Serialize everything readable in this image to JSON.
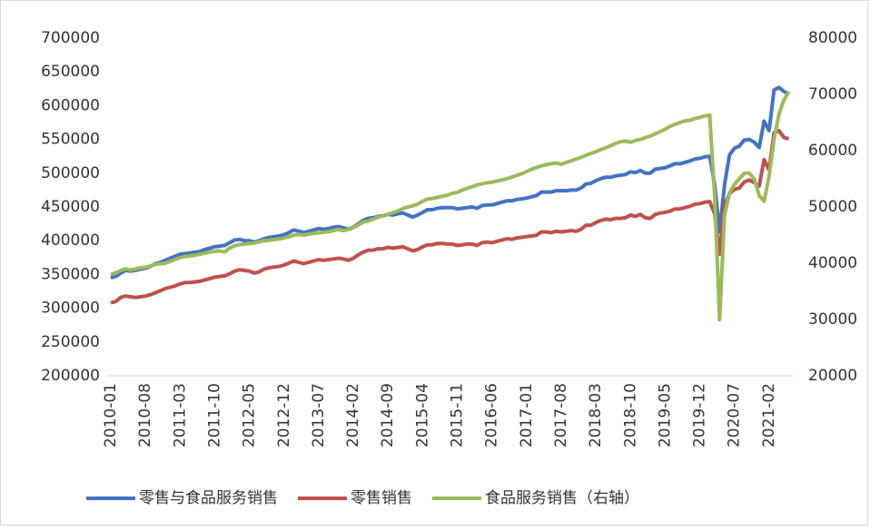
{
  "chart_data": {
    "type": "line",
    "categories": [
      "2010-01",
      null,
      null,
      null,
      null,
      null,
      null,
      "2010-08",
      null,
      null,
      null,
      null,
      null,
      null,
      "2011-03",
      null,
      null,
      null,
      null,
      null,
      null,
      "2011-10",
      null,
      null,
      null,
      null,
      null,
      null,
      "2012-05",
      null,
      null,
      null,
      null,
      null,
      null,
      "2012-12",
      null,
      null,
      null,
      null,
      null,
      null,
      "2013-07",
      null,
      null,
      null,
      null,
      null,
      null,
      "2014-02",
      null,
      null,
      null,
      null,
      null,
      null,
      "2014-09",
      null,
      null,
      null,
      null,
      null,
      null,
      "2015-04",
      null,
      null,
      null,
      null,
      null,
      null,
      "2015-11",
      null,
      null,
      null,
      null,
      null,
      null,
      "2016-06",
      null,
      null,
      null,
      null,
      null,
      null,
      "2017-01",
      null,
      null,
      null,
      null,
      null,
      null,
      "2017-08",
      null,
      null,
      null,
      null,
      null,
      null,
      "2018-03",
      null,
      null,
      null,
      null,
      null,
      null,
      "2018-10",
      null,
      null,
      null,
      null,
      null,
      null,
      "2019-05",
      null,
      null,
      null,
      null,
      null,
      null,
      "2019-12",
      null,
      null,
      null,
      null,
      null,
      null,
      "2020-07",
      null,
      null,
      null,
      null,
      null,
      null,
      "2021-02",
      null,
      null,
      null,
      null
    ],
    "series": [
      {
        "name": "零售与食品服务销售",
        "color": "#4472c4",
        "values": [
          345000,
          347000,
          352000,
          356000,
          355000,
          356000,
          358000,
          359000,
          362000,
          366000,
          368000,
          371000,
          374000,
          377000,
          380000,
          381000,
          382000,
          383000,
          384000,
          387000,
          389000,
          391000,
          392000,
          393000,
          397000,
          401000,
          402000,
          400000,
          400000,
          398000,
          400000,
          403000,
          405000,
          406000,
          407000,
          409000,
          412000,
          416000,
          414000,
          412000,
          414000,
          416000,
          418000,
          417000,
          418000,
          420000,
          421000,
          419000,
          417000,
          420000,
          425000,
          430000,
          433000,
          434000,
          436000,
          437000,
          439000,
          438000,
          440000,
          441000,
          438000,
          435000,
          438000,
          442000,
          446000,
          446000,
          448000,
          449000,
          449000,
          449000,
          447000,
          448000,
          449000,
          450000,
          448000,
          452000,
          453000,
          453000,
          455000,
          457000,
          459000,
          459000,
          461000,
          462000,
          463000,
          465000,
          467000,
          472000,
          472000,
          472000,
          474000,
          474000,
          474000,
          475000,
          475000,
          478000,
          484000,
          485000,
          489000,
          492000,
          494000,
          494000,
          496000,
          497000,
          498000,
          502000,
          501000,
          504000,
          500000,
          500000,
          506000,
          507000,
          508000,
          511000,
          514000,
          514000,
          516000,
          518000,
          521000,
          522000,
          524000,
          525000,
          484000,
          413000,
          483000,
          527000,
          537000,
          540000,
          549000,
          550000,
          546000,
          538000,
          577000,
          563000,
          623000,
          627000,
          621000,
          617000
        ]
      },
      {
        "name": "零售销售",
        "color": "#c0504d",
        "values": [
          308000,
          310000,
          316000,
          318000,
          317000,
          316000,
          317000,
          318000,
          320000,
          323000,
          326000,
          329000,
          331000,
          333000,
          336000,
          338000,
          338000,
          339000,
          340000,
          342000,
          344000,
          346000,
          347000,
          348000,
          351000,
          355000,
          357000,
          356000,
          355000,
          352000,
          354000,
          358000,
          360000,
          361000,
          362000,
          364000,
          367000,
          370000,
          368000,
          366000,
          368000,
          370000,
          372000,
          371000,
          372000,
          373000,
          374000,
          373000,
          371000,
          374000,
          379000,
          383000,
          386000,
          386000,
          388000,
          388000,
          390000,
          389000,
          390000,
          391000,
          388000,
          385000,
          387000,
          391000,
          394000,
          394000,
          396000,
          396000,
          395000,
          395000,
          393000,
          394000,
          395000,
          395000,
          393000,
          397000,
          398000,
          397000,
          399000,
          401000,
          403000,
          402000,
          404000,
          405000,
          406000,
          407000,
          408000,
          413000,
          413000,
          412000,
          414000,
          413000,
          414000,
          415000,
          414000,
          417000,
          423000,
          423000,
          427000,
          430000,
          432000,
          431000,
          433000,
          433000,
          434000,
          438000,
          436000,
          439000,
          434000,
          433000,
          439000,
          441000,
          442000,
          444000,
          447000,
          447000,
          449000,
          451000,
          454000,
          455000,
          457000,
          458000,
          440000,
          380000,
          452000,
          470000,
          476000,
          478000,
          487000,
          490000,
          486000,
          481000,
          520000,
          505000,
          560000,
          563000,
          553000,
          551000
        ]
      },
      {
        "name": "食品服务销售（右轴）",
        "color": "#9bbb59",
        "axis": "y2",
        "values": [
          38000,
          38300,
          38700,
          39000,
          38800,
          39000,
          39200,
          39300,
          39500,
          39800,
          39900,
          40000,
          40300,
          40700,
          41000,
          41200,
          41300,
          41400,
          41600,
          41800,
          42000,
          42100,
          42200,
          42000,
          42700,
          43100,
          43300,
          43400,
          43500,
          43600,
          43800,
          44000,
          44100,
          44200,
          44300,
          44500,
          44700,
          45000,
          45100,
          45000,
          45200,
          45300,
          45400,
          45500,
          45600,
          45800,
          46000,
          45800,
          46000,
          46300,
          46800,
          47300,
          47500,
          47800,
          48200,
          48400,
          48700,
          49000,
          49300,
          49700,
          50000,
          50200,
          50500,
          51000,
          51400,
          51500,
          51700,
          51900,
          52100,
          52400,
          52600,
          53000,
          53300,
          53600,
          53900,
          54100,
          54300,
          54400,
          54600,
          54800,
          55000,
          55300,
          55600,
          55900,
          56300,
          56700,
          57000,
          57300,
          57500,
          57700,
          57800,
          57600,
          57900,
          58200,
          58500,
          58800,
          59200,
          59500,
          59800,
          60200,
          60500,
          60900,
          61300,
          61600,
          61700,
          61500,
          61800,
          62000,
          62300,
          62600,
          63000,
          63400,
          63800,
          64300,
          64700,
          65000,
          65300,
          65400,
          65700,
          65900,
          66200,
          66300,
          52000,
          30000,
          48500,
          52500,
          54000,
          55000,
          56000,
          56000,
          55000,
          52000,
          51000,
          55500,
          62000,
          66500,
          69000,
          70500
        ]
      }
    ],
    "ylim": [
      200000,
      700000
    ],
    "yticks": [
      200000,
      250000,
      300000,
      350000,
      400000,
      450000,
      500000,
      550000,
      600000,
      650000,
      700000
    ],
    "y2lim": [
      20000,
      80000
    ],
    "y2ticks": [
      20000,
      30000,
      40000,
      50000,
      60000,
      70000,
      80000
    ],
    "legend": "bottom"
  }
}
